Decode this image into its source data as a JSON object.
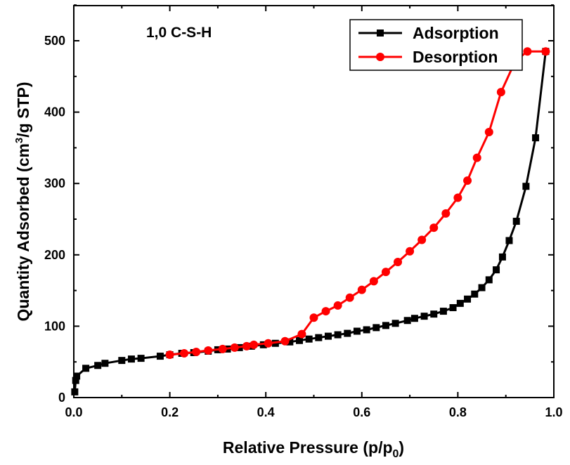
{
  "chart_data": {
    "type": "line",
    "annotation": "1,0 C-S-H",
    "xlabel_main": "Relative Pressure (p/p",
    "xlabel_sub": "0",
    "xlabel_end": ")",
    "ylabel_main": "Quantity Adsorbed (cm",
    "ylabel_sup": "3",
    "ylabel_end": "/g STP)",
    "xlim": [
      0.0,
      1.0
    ],
    "ylim": [
      0,
      550
    ],
    "x_ticks": [
      0.0,
      0.2,
      0.4,
      0.6,
      0.8,
      1.0
    ],
    "x_tick_labels": [
      "0.0",
      "0.2",
      "0.4",
      "0.6",
      "0.8",
      "1.0"
    ],
    "y_ticks": [
      0,
      100,
      200,
      300,
      400,
      500
    ],
    "y_tick_labels": [
      "0",
      "100",
      "200",
      "300",
      "400",
      "500"
    ],
    "grid": false,
    "legend_position": "top-right",
    "series": [
      {
        "name": "Adsorption",
        "color": "#000000",
        "marker": "square",
        "points": [
          [
            0.002,
            8
          ],
          [
            0.004,
            24
          ],
          [
            0.006,
            30
          ],
          [
            0.025,
            41
          ],
          [
            0.05,
            45
          ],
          [
            0.065,
            48
          ],
          [
            0.1,
            52
          ],
          [
            0.12,
            54
          ],
          [
            0.14,
            55
          ],
          [
            0.18,
            58
          ],
          [
            0.2,
            60
          ],
          [
            0.225,
            62
          ],
          [
            0.25,
            63
          ],
          [
            0.28,
            65
          ],
          [
            0.3,
            67
          ],
          [
            0.32,
            68
          ],
          [
            0.345,
            70
          ],
          [
            0.37,
            72
          ],
          [
            0.395,
            74
          ],
          [
            0.42,
            76
          ],
          [
            0.45,
            78
          ],
          [
            0.47,
            80
          ],
          [
            0.49,
            82
          ],
          [
            0.51,
            84
          ],
          [
            0.53,
            86
          ],
          [
            0.55,
            88
          ],
          [
            0.57,
            90
          ],
          [
            0.59,
            93
          ],
          [
            0.61,
            95
          ],
          [
            0.63,
            98
          ],
          [
            0.65,
            101
          ],
          [
            0.67,
            104
          ],
          [
            0.695,
            108
          ],
          [
            0.71,
            111
          ],
          [
            0.73,
            114
          ],
          [
            0.75,
            117
          ],
          [
            0.77,
            121
          ],
          [
            0.79,
            126
          ],
          [
            0.805,
            132
          ],
          [
            0.82,
            138
          ],
          [
            0.835,
            145
          ],
          [
            0.85,
            154
          ],
          [
            0.865,
            165
          ],
          [
            0.88,
            179
          ],
          [
            0.893,
            197
          ],
          [
            0.907,
            220
          ],
          [
            0.922,
            247
          ],
          [
            0.942,
            296
          ],
          [
            0.962,
            364
          ],
          [
            0.983,
            485
          ]
        ]
      },
      {
        "name": "Desorption",
        "color": "#ff0000",
        "marker": "circle",
        "points": [
          [
            0.2,
            60
          ],
          [
            0.23,
            62
          ],
          [
            0.255,
            64
          ],
          [
            0.28,
            66
          ],
          [
            0.31,
            68
          ],
          [
            0.335,
            70
          ],
          [
            0.36,
            72
          ],
          [
            0.375,
            74
          ],
          [
            0.405,
            76
          ],
          [
            0.44,
            79
          ],
          [
            0.475,
            89
          ],
          [
            0.5,
            112
          ],
          [
            0.525,
            121
          ],
          [
            0.55,
            129
          ],
          [
            0.575,
            140
          ],
          [
            0.6,
            151
          ],
          [
            0.625,
            163
          ],
          [
            0.65,
            176
          ],
          [
            0.675,
            190
          ],
          [
            0.7,
            205
          ],
          [
            0.725,
            221
          ],
          [
            0.75,
            238
          ],
          [
            0.775,
            258
          ],
          [
            0.8,
            280
          ],
          [
            0.82,
            304
          ],
          [
            0.84,
            336
          ],
          [
            0.865,
            372
          ],
          [
            0.89,
            428
          ],
          [
            0.92,
            472
          ],
          [
            0.945,
            485
          ],
          [
            0.983,
            485
          ]
        ]
      }
    ]
  }
}
